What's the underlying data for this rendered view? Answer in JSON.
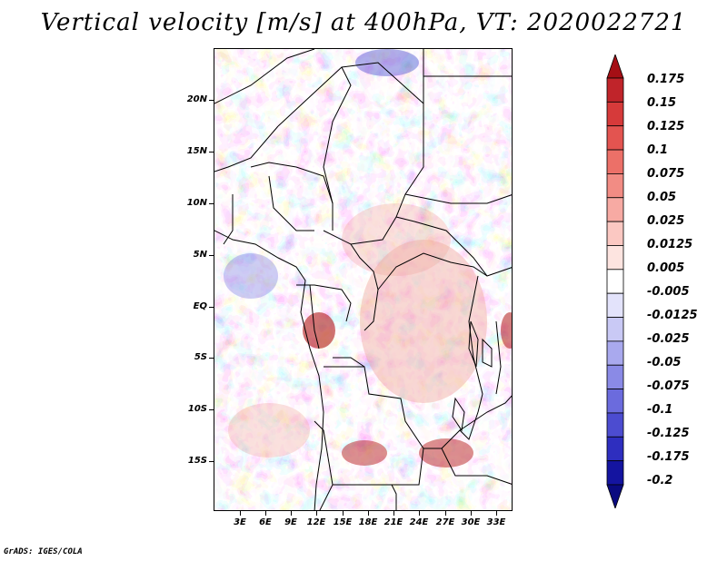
{
  "title": "Vertical velocity [m/s] at 400hPa, VT: 2020022721",
  "y_axis": [
    "20N",
    "15N",
    "10N",
    "5N",
    "EQ",
    "5S",
    "10S",
    "15S"
  ],
  "x_axis": [
    "3E",
    "6E",
    "9E",
    "12E",
    "15E",
    "18E",
    "21E",
    "24E",
    "27E",
    "30E",
    "33E"
  ],
  "colorbar": {
    "labels": [
      "0.175",
      "0.15",
      "0.125",
      "0.1",
      "0.075",
      "0.05",
      "0.025",
      "0.0125",
      "0.005",
      "-0.005",
      "-0.0125",
      "-0.025",
      "-0.05",
      "-0.075",
      "-0.1",
      "-0.125",
      "-0.175",
      "-0.2"
    ],
    "colors": [
      "#a50f15",
      "#c0242a",
      "#d63a3a",
      "#e35450",
      "#ec7068",
      "#f28c84",
      "#f7aaa3",
      "#fbc8c2",
      "#fde4e0",
      "#ffffff",
      "#e3e3fb",
      "#c9c9f5",
      "#a9a9ee",
      "#8a8ae6",
      "#6b6bdd",
      "#4c4cd0",
      "#2e2ebf",
      "#1414a0",
      "#0a0a80"
    ]
  },
  "footer": "GrADS: IGES/COLA"
}
